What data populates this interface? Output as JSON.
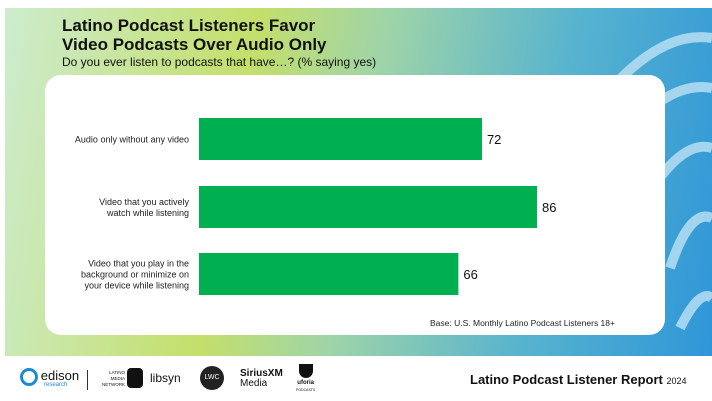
{
  "header": {
    "title_line1": "Latino Podcast Listeners Favor",
    "title_line2": "Video Podcasts Over Audio Only",
    "subtitle": "Do you ever listen to podcasts that have…? (% saying yes)"
  },
  "chart_data": {
    "type": "bar",
    "orientation": "horizontal",
    "categories": [
      [
        "Audio only without any video"
      ],
      [
        "Video that you actively",
        "watch while listening"
      ],
      [
        "Video that you play in the",
        "background or minimize on",
        "your device while listening"
      ]
    ],
    "values": [
      72,
      86,
      66
    ],
    "xlim": [
      0,
      100
    ],
    "grid": false,
    "bar_color": "#00b050",
    "title": "",
    "xlabel": "",
    "ylabel": ""
  },
  "base_note": "Base: U.S. Monthly  Latino Podcast Listeners 18+",
  "footer": {
    "report_title": "Latino Podcast Listener Report",
    "year": "2024",
    "logos": {
      "edison": "edison",
      "edison_sub": "research",
      "lmn": "LATINO MEDIA NETWORK",
      "libsyn": "libsyn",
      "lwc": "LWC",
      "siriusxm": "SiriusXM",
      "siriusxm_sub": "Media",
      "uforia": "uforia",
      "uforia_sub": "PODCASTS"
    }
  }
}
